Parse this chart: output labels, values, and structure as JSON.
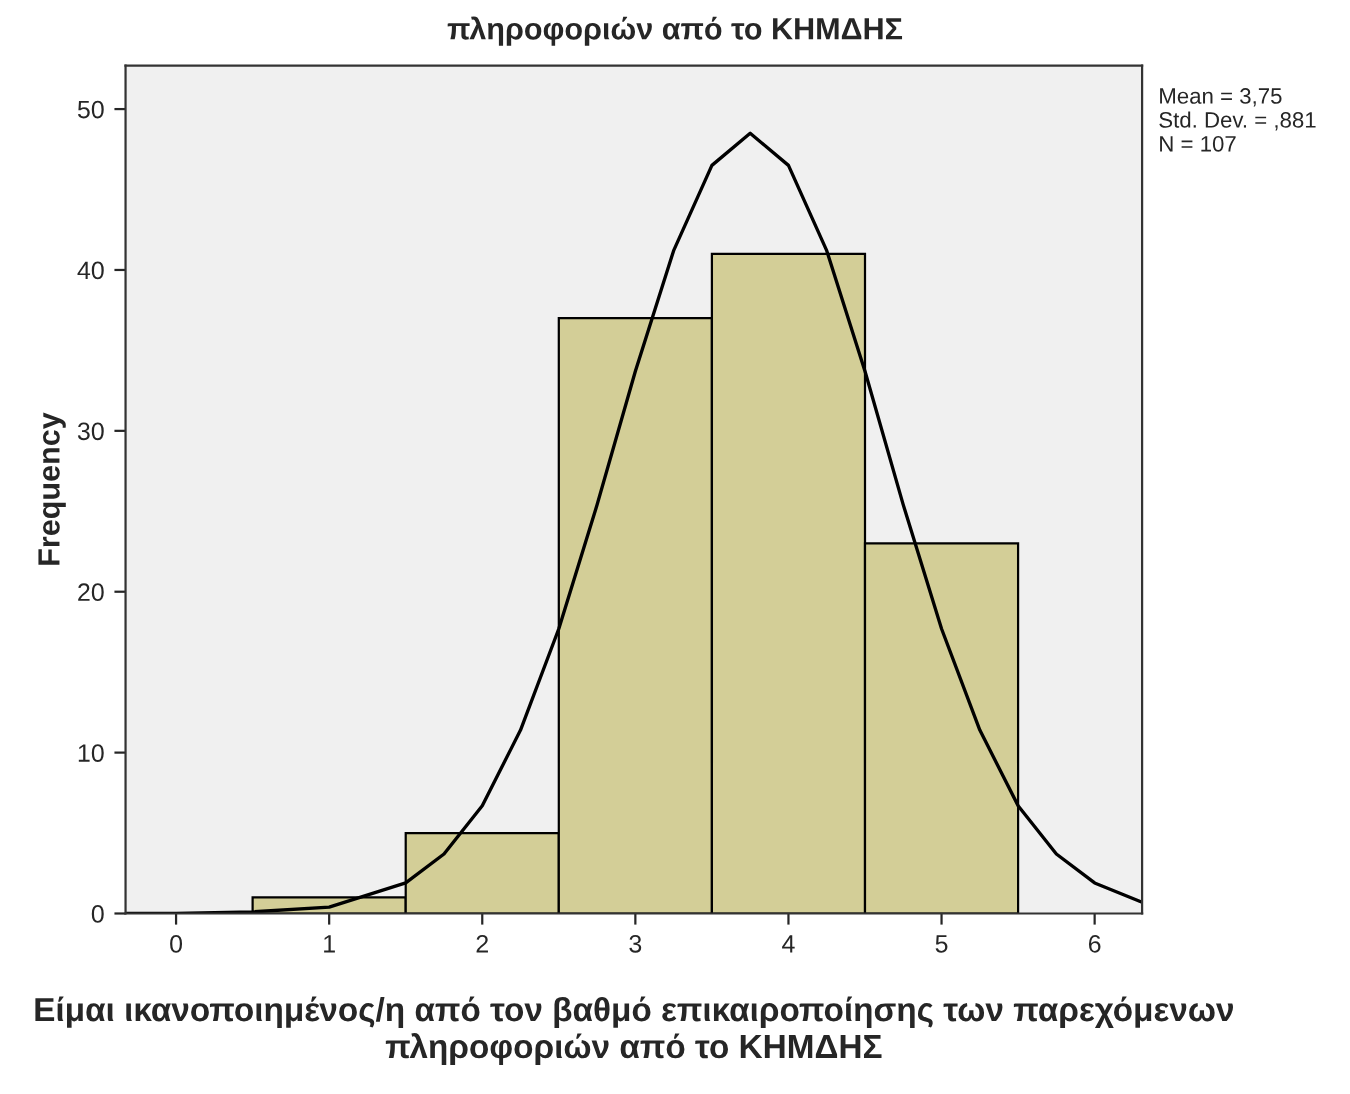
{
  "chart_data": {
    "type": "histogram",
    "title": "πληροφοριών από το ΚΗΜΔΗΣ",
    "xlabel": "Είμαι ικανοποιημένος/η από τον βαθμό επικαιροποίησης των παρεχόμενων πληροφοριών από το ΚΗΜΔΗΣ",
    "ylabel": "Frequency",
    "bins": [
      0.5,
      1.5,
      2.5,
      3.5,
      4.5,
      5.5
    ],
    "values": [
      1,
      5,
      37,
      41,
      23
    ],
    "color": "#d3ce97",
    "series": [
      {
        "type": "line",
        "color": "#000000",
        "x": [
          -0.33,
          0,
          0.5,
          1,
          1.5,
          1.75,
          2,
          2.25,
          2.5,
          2.75,
          3,
          3.25,
          3.5,
          3.75,
          4,
          4.25,
          4.5,
          4.75,
          5,
          5.25,
          5.5,
          5.75,
          6,
          6.31
        ],
        "values": [
          0,
          0,
          0.1,
          0.4,
          1.9,
          3.7,
          6.7,
          11.4,
          17.7,
          25.4,
          33.7,
          41.2,
          46.5,
          48.5,
          46.5,
          41.2,
          33.7,
          25.4,
          17.7,
          11.4,
          6.7,
          3.7,
          1.9,
          0.7
        ]
      }
    ],
    "xlim": [
      -0.33,
      6.31
    ],
    "ylim": [
      0,
      52.7
    ],
    "xticks": [
      0,
      1,
      2,
      3,
      4,
      5,
      6
    ],
    "yticks": [
      0,
      10,
      20,
      30,
      40,
      50
    ],
    "grid": false,
    "legend": false,
    "annotations": [
      "Mean = 3,75\nStd. Dev. = ,881\nN = 107"
    ]
  }
}
